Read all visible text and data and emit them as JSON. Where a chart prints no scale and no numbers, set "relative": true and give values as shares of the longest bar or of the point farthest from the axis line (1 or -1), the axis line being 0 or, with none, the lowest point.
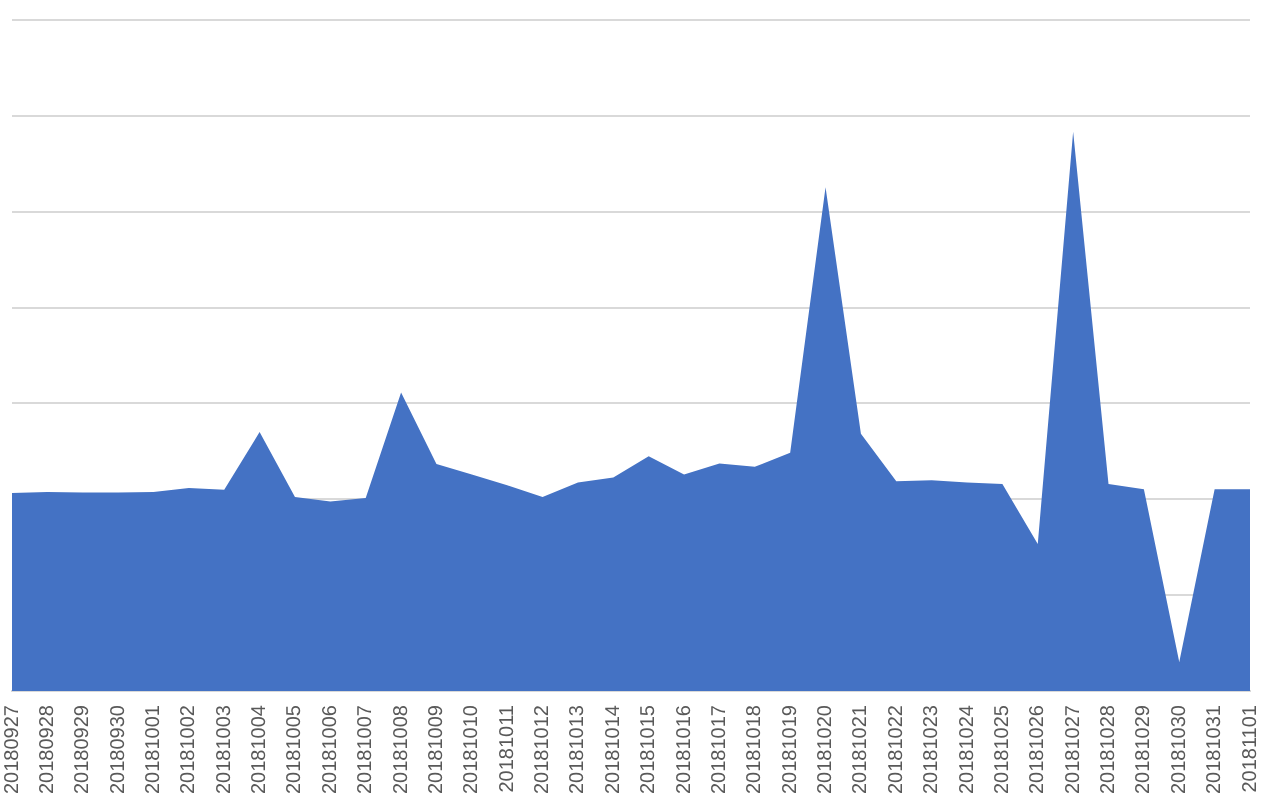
{
  "chart_data": {
    "type": "area",
    "relative": true,
    "grid": "y",
    "color": "#4472c4",
    "categories": [
      "20180927",
      "20180928",
      "20180929",
      "20180930",
      "20181001",
      "20181002",
      "20181003",
      "20181004",
      "20181005",
      "20181006",
      "20181007",
      "20181008",
      "20181009",
      "20181010",
      "20181011",
      "20181012",
      "20181013",
      "20181014",
      "20181015",
      "20181016",
      "20181017",
      "20181018",
      "20181019",
      "20181020",
      "20181021",
      "20181022",
      "20181023",
      "20181024",
      "20181025",
      "20181026",
      "20181027",
      "20181028",
      "20181029",
      "20181030",
      "20181031",
      "20181101"
    ],
    "values": [
      0.354,
      0.356,
      0.355,
      0.355,
      0.356,
      0.363,
      0.36,
      0.463,
      0.347,
      0.339,
      0.345,
      0.534,
      0.406,
      0.387,
      0.368,
      0.347,
      0.373,
      0.382,
      0.42,
      0.387,
      0.407,
      0.401,
      0.426,
      0.901,
      0.46,
      0.375,
      0.377,
      0.373,
      0.37,
      0.263,
      1,
      0.37,
      0.361,
      0.052,
      0.361,
      0.361
    ]
  }
}
